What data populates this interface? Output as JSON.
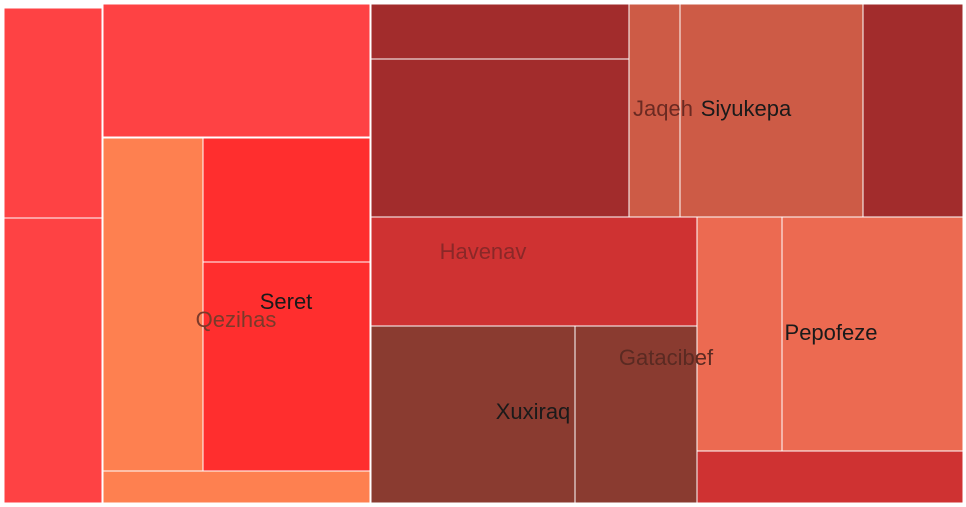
{
  "chart_data": {
    "type": "treemap",
    "title": "",
    "groups": [
      {
        "name": "Qezihas",
        "color": "#fe8050",
        "children": [
          {
            "name": "",
            "value": 101,
            "color": "#fe4244"
          },
          {
            "name": "",
            "value": 132,
            "color": "#fe4244"
          },
          {
            "name": "",
            "value": 112,
            "color": "#fe4244"
          },
          {
            "name": "",
            "value": 71,
            "color": "#fe8050"
          },
          {
            "name": "",
            "value": 16,
            "color": "#fe8050"
          }
        ]
      },
      {
        "name": "Seret",
        "color": "#ff2e2e",
        "children": [
          {
            "name": "",
            "value": 42,
            "color": "#ff2e2e"
          },
          {
            "name": "",
            "value": 70,
            "color": "#ff2e2e"
          }
        ]
      },
      {
        "name": "Jaqeh",
        "color": "#cd5b46",
        "children": [
          {
            "name": "",
            "value": 29,
            "color": "#a22c2c"
          },
          {
            "name": "",
            "value": 80,
            "color": "#a22c2c"
          },
          {
            "name": "",
            "value": 11,
            "color": "#cd5b46"
          }
        ]
      },
      {
        "name": "Siyukepa",
        "color": "#cd5b46",
        "children": [
          {
            "name": "",
            "value": 39,
            "color": "#cd5b46"
          },
          {
            "name": "",
            "value": 21,
            "color": "#a22c2c"
          }
        ]
      },
      {
        "name": "Havenav",
        "color": "#cf3232",
        "children": [
          {
            "name": "",
            "value": 71,
            "color": "#cf3232"
          }
        ]
      },
      {
        "name": "Xuxiraq",
        "color": "#8a3b30",
        "children": [
          {
            "name": "",
            "value": 71,
            "color": "#8a3b30"
          }
        ]
      },
      {
        "name": "Gatacibef",
        "color": "#8a3b30",
        "children": [
          {
            "name": "",
            "value": 42,
            "color": "#8a3b30"
          }
        ]
      },
      {
        "name": "Pepofeze",
        "color": "#ec6a51",
        "children": [
          {
            "name": "",
            "value": 44,
            "color": "#ec6a51"
          },
          {
            "name": "",
            "value": 41,
            "color": "#ec6a51"
          },
          {
            "name": "",
            "value": 16,
            "color": "#cf3232"
          }
        ]
      }
    ],
    "label_colors": {
      "Seret": "#1a1a1a",
      "Qezihas": "#7a3a2a",
      "Jaqeh": "#6b2a22",
      "Siyukepa": "#1a1a1a",
      "Havenav": "#8a2828",
      "Xuxiraq": "#1a1a1a",
      "Gatacibef": "#5a2a22",
      "Pepofeze": "#1a1a1a"
    }
  }
}
